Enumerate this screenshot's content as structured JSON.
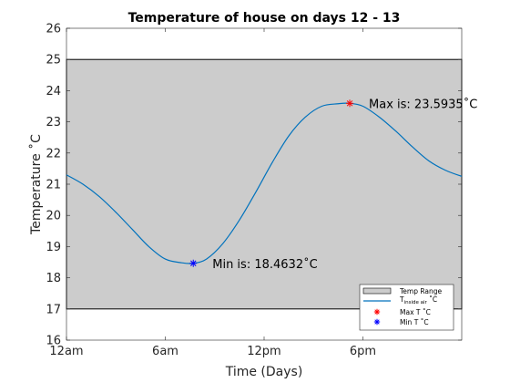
{
  "chart_data": {
    "type": "line",
    "title": "Temperature of house on days 12 - 13",
    "xlabel": "Time (Days)",
    "ylabel": "Temperature ˚C",
    "xlim": [
      0,
      24
    ],
    "ylim": [
      16,
      26
    ],
    "x_tick_values": [
      0,
      6,
      12,
      18
    ],
    "x_tick_labels": [
      "12am",
      "6am",
      "12pm",
      "6pm"
    ],
    "y_ticks": [
      16,
      17,
      18,
      19,
      20,
      21,
      22,
      23,
      24,
      25,
      26
    ],
    "temp_range": {
      "name": "Temp Range",
      "low": 17,
      "high": 25,
      "color": "#cccccc"
    },
    "series": [
      {
        "name": "T_inside air ˚C",
        "color": "#0072bd",
        "x": [
          0,
          1,
          2,
          3,
          4,
          5,
          6,
          7,
          7.7,
          8.5,
          9.5,
          10.5,
          11.5,
          12.5,
          13.5,
          14.5,
          15.5,
          16.5,
          17.2,
          18,
          19,
          20,
          21,
          22,
          23,
          24
        ],
        "y": [
          21.3,
          21.0,
          20.6,
          20.1,
          19.55,
          19.0,
          18.6,
          18.48,
          18.4632,
          18.6,
          19.1,
          19.85,
          20.75,
          21.7,
          22.55,
          23.15,
          23.5,
          23.58,
          23.5935,
          23.5,
          23.15,
          22.7,
          22.2,
          21.75,
          21.45,
          21.25
        ]
      }
    ],
    "markers": [
      {
        "name": "Max T ˚C",
        "x": 17.2,
        "y": 23.5935,
        "color": "#ff0000",
        "label": "Max is: 23.5935˚C"
      },
      {
        "name": "Min T ˚C",
        "x": 7.7,
        "y": 18.4632,
        "color": "#0000ff",
        "label": "Min is: 18.4632˚C"
      }
    ],
    "grid": false,
    "legend": {
      "position": "bottom-right",
      "entries": [
        "Temp Range",
        "T",
        "inside air",
        "˚C",
        "Max T ˚C",
        "Min T ˚C"
      ]
    }
  }
}
